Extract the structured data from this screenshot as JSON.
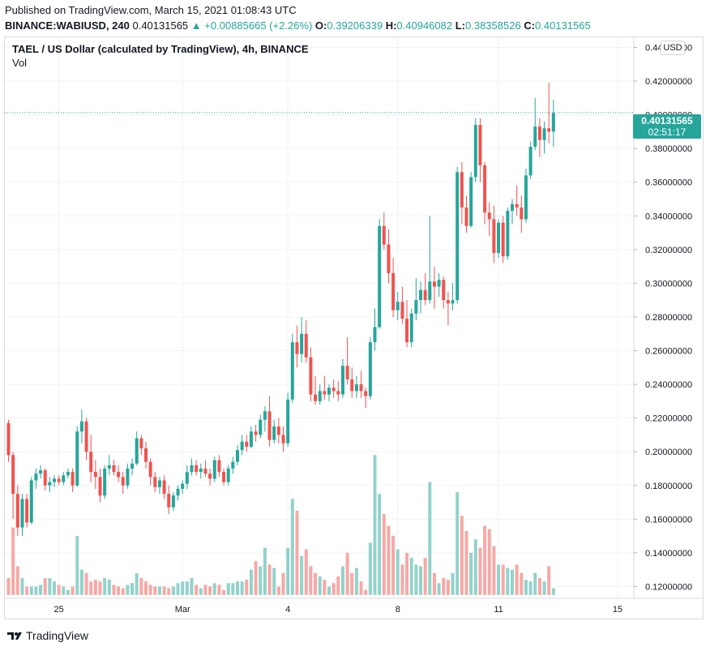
{
  "header": {
    "published": "Published on TradingView.com, March 15, 2021 01:08:43 UTC",
    "symbol": "BINANCE:WABIUSD, 240",
    "last": "0.40131565",
    "change_arrow": "▲",
    "change": "+0.00885665 (+2.26%)",
    "o_label": "O:",
    "o_value": "0.39206339",
    "h_label": "H:",
    "h_value": "0.40946082",
    "l_label": "L:",
    "l_value": "0.38358526",
    "c_label": "C:",
    "c_value": "0.40131565"
  },
  "chart_title": "TAEL / US Dollar (calculated by TradingView), 4h, BINANCE",
  "volume_label": "Vol",
  "currency_button": "USD",
  "price_badge": {
    "price": "0.40131565",
    "countdown": "02:51:17"
  },
  "footer_brand": "TradingView",
  "colors": {
    "up": "#26a69a",
    "down": "#ef5350",
    "up_vol": "#93d2cb",
    "down_vol": "#f6a9a5",
    "grid": "#f0f3fa"
  },
  "chart_data": {
    "type": "candlestick",
    "y_axis": {
      "ticks": [
        "0.44000000",
        "0.42000000",
        "0.40000000",
        "0.38000000",
        "0.36000000",
        "0.34000000",
        "0.32000000",
        "0.30000000",
        "0.28000000",
        "0.26000000",
        "0.24000000",
        "0.22000000",
        "0.20000000",
        "0.18000000",
        "0.16000000",
        "0.14000000",
        "0.12000000"
      ],
      "range": [
        0.113,
        0.446
      ]
    },
    "x_axis": {
      "labels": [
        {
          "text": "25",
          "bar": 11
        },
        {
          "text": "Mar",
          "bar": 38
        },
        {
          "text": "4",
          "bar": 61
        },
        {
          "text": "8",
          "bar": 85
        },
        {
          "text": "11",
          "bar": 107
        },
        {
          "text": "15",
          "bar": 133
        }
      ]
    },
    "last_price": 0.40131565,
    "candles": [
      [
        0.217,
        0.219,
        0.194,
        0.198
      ],
      [
        0.198,
        0.2,
        0.16,
        0.175
      ],
      [
        0.175,
        0.18,
        0.15,
        0.155
      ],
      [
        0.155,
        0.175,
        0.15,
        0.172
      ],
      [
        0.172,
        0.175,
        0.155,
        0.158
      ],
      [
        0.158,
        0.185,
        0.157,
        0.183
      ],
      [
        0.183,
        0.19,
        0.178,
        0.187
      ],
      [
        0.187,
        0.192,
        0.184,
        0.189
      ],
      [
        0.189,
        0.19,
        0.177,
        0.18
      ],
      [
        0.18,
        0.185,
        0.176,
        0.182
      ],
      [
        0.182,
        0.186,
        0.179,
        0.184
      ],
      [
        0.184,
        0.186,
        0.18,
        0.182
      ],
      [
        0.182,
        0.188,
        0.18,
        0.186
      ],
      [
        0.186,
        0.19,
        0.184,
        0.188
      ],
      [
        0.188,
        0.19,
        0.176,
        0.18
      ],
      [
        0.18,
        0.215,
        0.179,
        0.212
      ],
      [
        0.212,
        0.225,
        0.205,
        0.218
      ],
      [
        0.218,
        0.22,
        0.195,
        0.2
      ],
      [
        0.2,
        0.21,
        0.182,
        0.188
      ],
      [
        0.188,
        0.195,
        0.178,
        0.185
      ],
      [
        0.185,
        0.19,
        0.17,
        0.174
      ],
      [
        0.174,
        0.192,
        0.172,
        0.19
      ],
      [
        0.19,
        0.198,
        0.186,
        0.192
      ],
      [
        0.192,
        0.195,
        0.186,
        0.188
      ],
      [
        0.188,
        0.192,
        0.182,
        0.185
      ],
      [
        0.185,
        0.188,
        0.175,
        0.18
      ],
      [
        0.18,
        0.193,
        0.178,
        0.19
      ],
      [
        0.19,
        0.196,
        0.186,
        0.193
      ],
      [
        0.193,
        0.212,
        0.192,
        0.208
      ],
      [
        0.208,
        0.21,
        0.198,
        0.202
      ],
      [
        0.202,
        0.206,
        0.19,
        0.194
      ],
      [
        0.194,
        0.196,
        0.18,
        0.185
      ],
      [
        0.185,
        0.188,
        0.176,
        0.179
      ],
      [
        0.179,
        0.185,
        0.175,
        0.183
      ],
      [
        0.183,
        0.186,
        0.172,
        0.175
      ],
      [
        0.175,
        0.18,
        0.163,
        0.167
      ],
      [
        0.167,
        0.176,
        0.165,
        0.174
      ],
      [
        0.174,
        0.18,
        0.171,
        0.178
      ],
      [
        0.178,
        0.183,
        0.175,
        0.181
      ],
      [
        0.181,
        0.192,
        0.178,
        0.188
      ],
      [
        0.188,
        0.196,
        0.186,
        0.192
      ],
      [
        0.192,
        0.195,
        0.186,
        0.188
      ],
      [
        0.188,
        0.193,
        0.184,
        0.19
      ],
      [
        0.19,
        0.195,
        0.185,
        0.187
      ],
      [
        0.187,
        0.19,
        0.18,
        0.184
      ],
      [
        0.184,
        0.197,
        0.182,
        0.195
      ],
      [
        0.195,
        0.198,
        0.185,
        0.188
      ],
      [
        0.188,
        0.19,
        0.18,
        0.182
      ],
      [
        0.182,
        0.192,
        0.18,
        0.19
      ],
      [
        0.19,
        0.197,
        0.187,
        0.194
      ],
      [
        0.194,
        0.204,
        0.192,
        0.201
      ],
      [
        0.201,
        0.21,
        0.198,
        0.206
      ],
      [
        0.206,
        0.21,
        0.2,
        0.203
      ],
      [
        0.203,
        0.215,
        0.202,
        0.212
      ],
      [
        0.212,
        0.216,
        0.206,
        0.21
      ],
      [
        0.21,
        0.222,
        0.208,
        0.219
      ],
      [
        0.219,
        0.227,
        0.212,
        0.224
      ],
      [
        0.224,
        0.233,
        0.203,
        0.207
      ],
      [
        0.207,
        0.219,
        0.205,
        0.215
      ],
      [
        0.215,
        0.22,
        0.205,
        0.21
      ],
      [
        0.21,
        0.215,
        0.2,
        0.205
      ],
      [
        0.205,
        0.235,
        0.203,
        0.231
      ],
      [
        0.231,
        0.27,
        0.229,
        0.265
      ],
      [
        0.265,
        0.275,
        0.25,
        0.258
      ],
      [
        0.258,
        0.28,
        0.253,
        0.27
      ],
      [
        0.27,
        0.278,
        0.253,
        0.256
      ],
      [
        0.256,
        0.262,
        0.23,
        0.234
      ],
      [
        0.234,
        0.245,
        0.228,
        0.23
      ],
      [
        0.23,
        0.24,
        0.228,
        0.236
      ],
      [
        0.236,
        0.245,
        0.231,
        0.234
      ],
      [
        0.234,
        0.24,
        0.23,
        0.238
      ],
      [
        0.238,
        0.243,
        0.232,
        0.236
      ],
      [
        0.236,
        0.242,
        0.23,
        0.234
      ],
      [
        0.234,
        0.255,
        0.232,
        0.251
      ],
      [
        0.251,
        0.268,
        0.24,
        0.243
      ],
      [
        0.243,
        0.25,
        0.232,
        0.236
      ],
      [
        0.236,
        0.245,
        0.232,
        0.24
      ],
      [
        0.24,
        0.248,
        0.232,
        0.236
      ],
      [
        0.236,
        0.238,
        0.226,
        0.233
      ],
      [
        0.233,
        0.268,
        0.231,
        0.265
      ],
      [
        0.265,
        0.285,
        0.26,
        0.274
      ],
      [
        0.274,
        0.338,
        0.273,
        0.334
      ],
      [
        0.334,
        0.342,
        0.32,
        0.323
      ],
      [
        0.323,
        0.332,
        0.3,
        0.306
      ],
      [
        0.306,
        0.315,
        0.28,
        0.284
      ],
      [
        0.284,
        0.295,
        0.278,
        0.289
      ],
      [
        0.289,
        0.298,
        0.276,
        0.279
      ],
      [
        0.279,
        0.29,
        0.262,
        0.265
      ],
      [
        0.265,
        0.285,
        0.262,
        0.282
      ],
      [
        0.282,
        0.303,
        0.278,
        0.29
      ],
      [
        0.29,
        0.301,
        0.282,
        0.296
      ],
      [
        0.296,
        0.306,
        0.287,
        0.29
      ],
      [
        0.29,
        0.34,
        0.288,
        0.301
      ],
      [
        0.301,
        0.31,
        0.285,
        0.298
      ],
      [
        0.298,
        0.306,
        0.292,
        0.302
      ],
      [
        0.302,
        0.304,
        0.285,
        0.29
      ],
      [
        0.29,
        0.295,
        0.275,
        0.288
      ],
      [
        0.288,
        0.3,
        0.284,
        0.29
      ],
      [
        0.29,
        0.369,
        0.288,
        0.366
      ],
      [
        0.366,
        0.372,
        0.335,
        0.345
      ],
      [
        0.345,
        0.352,
        0.33,
        0.334
      ],
      [
        0.334,
        0.366,
        0.333,
        0.363
      ],
      [
        0.363,
        0.398,
        0.36,
        0.394
      ],
      [
        0.394,
        0.398,
        0.36,
        0.37
      ],
      [
        0.37,
        0.372,
        0.335,
        0.342
      ],
      [
        0.342,
        0.348,
        0.328,
        0.338
      ],
      [
        0.338,
        0.346,
        0.312,
        0.318
      ],
      [
        0.318,
        0.338,
        0.315,
        0.336
      ],
      [
        0.336,
        0.34,
        0.312,
        0.316
      ],
      [
        0.316,
        0.345,
        0.314,
        0.343
      ],
      [
        0.343,
        0.35,
        0.335,
        0.347
      ],
      [
        0.347,
        0.358,
        0.34,
        0.345
      ],
      [
        0.345,
        0.352,
        0.33,
        0.338
      ],
      [
        0.338,
        0.368,
        0.336,
        0.364
      ],
      [
        0.364,
        0.384,
        0.362,
        0.381
      ],
      [
        0.381,
        0.41,
        0.379,
        0.393
      ],
      [
        0.393,
        0.398,
        0.375,
        0.385
      ],
      [
        0.385,
        0.396,
        0.377,
        0.392
      ],
      [
        0.392,
        0.419,
        0.383,
        0.39
      ],
      [
        0.39,
        0.409,
        0.381,
        0.401
      ]
    ],
    "volumes": [
      0.125,
      0.155,
      0.132,
      0.125,
      0.12,
      0.12,
      0.12,
      0.121,
      0.125,
      0.125,
      0.123,
      0.121,
      0.12,
      0.118,
      0.12,
      0.15,
      0.13,
      0.128,
      0.123,
      0.124,
      0.123,
      0.125,
      0.124,
      0.121,
      0.12,
      0.119,
      0.121,
      0.122,
      0.128,
      0.125,
      0.123,
      0.121,
      0.12,
      0.12,
      0.12,
      0.119,
      0.12,
      0.122,
      0.123,
      0.123,
      0.125,
      0.121,
      0.119,
      0.121,
      0.12,
      0.122,
      0.121,
      0.118,
      0.122,
      0.122,
      0.123,
      0.123,
      0.124,
      0.13,
      0.135,
      0.132,
      0.143,
      0.133,
      0.131,
      0.12,
      0.128,
      0.143,
      0.172,
      0.165,
      0.138,
      0.142,
      0.132,
      0.128,
      0.126,
      0.124,
      0.12,
      0.122,
      0.126,
      0.132,
      0.14,
      0.128,
      0.131,
      0.123,
      0.118,
      0.146,
      0.198,
      0.175,
      0.163,
      0.156,
      0.15,
      0.142,
      0.133,
      0.14,
      0.137,
      0.133,
      0.132,
      0.137,
      0.182,
      0.128,
      0.122,
      0.125,
      0.124,
      0.128,
      0.176,
      0.162,
      0.153,
      0.14,
      0.148,
      0.143,
      0.156,
      0.154,
      0.144,
      0.133,
      0.133,
      0.131,
      0.13,
      0.133,
      0.128,
      0.124,
      0.123,
      0.128,
      0.125,
      0.123,
      0.132,
      0.119
    ]
  }
}
